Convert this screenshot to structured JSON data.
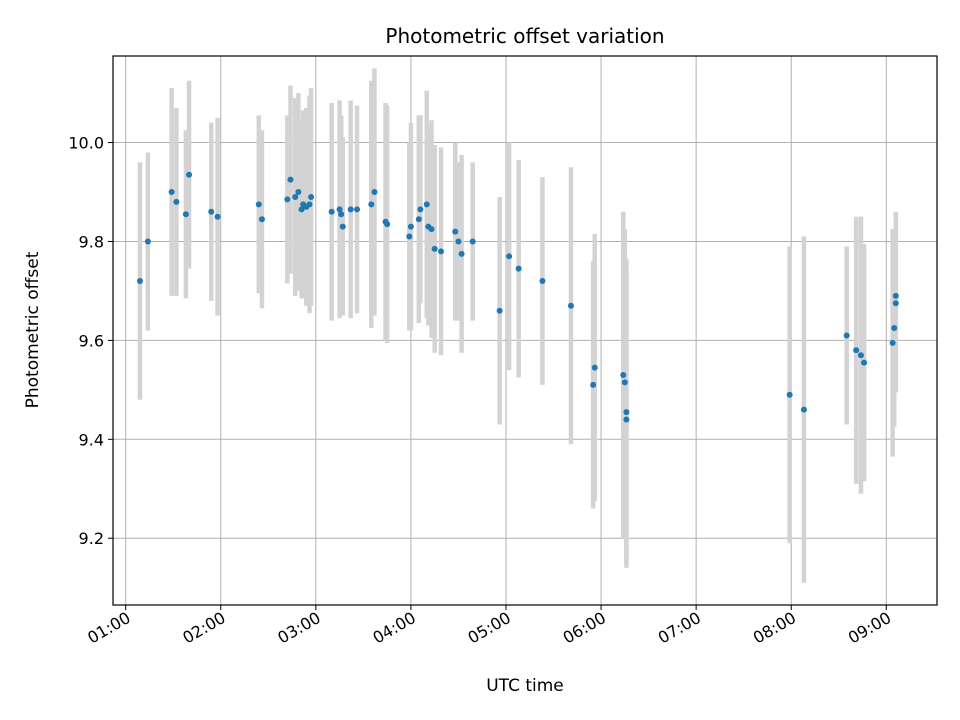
{
  "chart_data": {
    "type": "scatter",
    "title": "Photometric offset variation",
    "xlabel": "UTC time",
    "ylabel": "Photometric offset",
    "grid": true,
    "x_tick_labels": [
      "01:00",
      "02:00",
      "03:00",
      "04:00",
      "05:00",
      "06:00",
      "07:00",
      "08:00",
      "09:00"
    ],
    "y_tick_labels": [
      "9.2",
      "9.4",
      "9.6",
      "9.8",
      "10.0"
    ],
    "xlim": [
      "00:52",
      "09:32"
    ],
    "ylim": [
      9.065,
      10.175
    ],
    "colors": {
      "points": "#1f77b4",
      "errorbars": "#d3d3d3",
      "grid": "#b0b0b0"
    },
    "series": [
      {
        "x": [
          "01:09",
          "01:14",
          "01:29",
          "01:32",
          "01:38",
          "01:40",
          "01:54",
          "01:58",
          "02:24",
          "02:26",
          "02:42",
          "02:44",
          "02:47",
          "02:49",
          "02:51",
          "02:52",
          "02:54",
          "02:56",
          "02:57",
          "03:10",
          "03:15",
          "03:16",
          "03:17",
          "03:22",
          "03:26",
          "03:35",
          "03:37",
          "03:44",
          "03:45",
          "03:59",
          "04:00",
          "04:05",
          "04:06",
          "04:10",
          "04:11",
          "04:13",
          "04:15",
          "04:19",
          "04:28",
          "04:30",
          "04:32",
          "04:39",
          "04:56",
          "05:02",
          "05:08",
          "05:23",
          "05:41",
          "05:55",
          "05:56",
          "06:14",
          "06:15",
          "06:16",
          "06:16",
          "07:59",
          "08:08",
          "08:35",
          "08:41",
          "08:44",
          "08:46",
          "09:04",
          "09:05",
          "09:06",
          "09:06"
        ],
        "y": [
          9.72,
          9.8,
          9.9,
          9.88,
          9.855,
          9.935,
          9.86,
          9.85,
          9.875,
          9.845,
          9.885,
          9.925,
          9.89,
          9.9,
          9.865,
          9.875,
          9.87,
          9.875,
          9.89,
          9.86,
          9.865,
          9.855,
          9.83,
          9.865,
          9.865,
          9.875,
          9.9,
          9.84,
          9.835,
          9.81,
          9.83,
          9.845,
          9.865,
          9.875,
          9.83,
          9.825,
          9.785,
          9.78,
          9.82,
          9.8,
          9.775,
          9.8,
          9.66,
          9.77,
          9.745,
          9.72,
          9.67,
          9.51,
          9.545,
          9.53,
          9.515,
          9.455,
          9.44,
          9.49,
          9.46,
          9.61,
          9.58,
          9.57,
          9.555,
          9.595,
          9.625,
          9.69,
          9.675
        ],
        "yerr": [
          0.24,
          0.18,
          0.21,
          0.19,
          0.17,
          0.19,
          0.18,
          0.2,
          0.18,
          0.18,
          0.17,
          0.19,
          0.2,
          0.2,
          0.18,
          0.19,
          0.2,
          0.22,
          0.22,
          0.22,
          0.22,
          0.2,
          0.18,
          0.22,
          0.21,
          0.25,
          0.25,
          0.24,
          0.24,
          0.19,
          0.21,
          0.21,
          0.19,
          0.23,
          0.2,
          0.22,
          0.21,
          0.21,
          0.18,
          0.16,
          0.2,
          0.16,
          0.23,
          0.23,
          0.22,
          0.21,
          0.28,
          0.25,
          0.27,
          0.33,
          0.31,
          0.31,
          0.3,
          0.3,
          0.35,
          0.18,
          0.27,
          0.28,
          0.24,
          0.23,
          0.2,
          0.17,
          0.18
        ]
      }
    ]
  }
}
